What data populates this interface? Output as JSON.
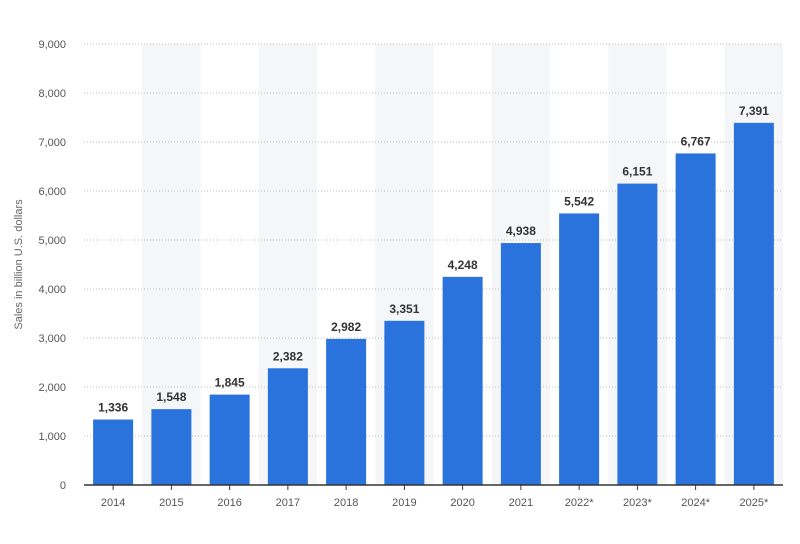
{
  "chart_data": {
    "type": "bar",
    "title": "",
    "xlabel": "",
    "ylabel": "Sales in billion U.S. dollars",
    "categories": [
      "2014",
      "2015",
      "2016",
      "2017",
      "2018",
      "2019",
      "2020",
      "2021",
      "2022*",
      "2023*",
      "2024*",
      "2025*"
    ],
    "values": [
      1336,
      1548,
      1845,
      2382,
      2982,
      3351,
      4248,
      4938,
      5542,
      6151,
      6767,
      7391
    ],
    "value_labels": [
      "1,336",
      "1,548",
      "1,845",
      "2,382",
      "2,982",
      "3,351",
      "4,248",
      "4,938",
      "5,542",
      "6,151",
      "6,767",
      "7,391"
    ],
    "ylim": [
      0,
      9000
    ],
    "yticks": [
      0,
      1000,
      2000,
      3000,
      4000,
      5000,
      6000,
      7000,
      8000,
      9000
    ],
    "ytick_labels": [
      "0",
      "1,000",
      "2,000",
      "3,000",
      "4,000",
      "5,000",
      "6,000",
      "7,000",
      "8,000",
      "9,000"
    ],
    "grid": true,
    "alternating_column_bands": true,
    "colors": {
      "bar": "#2a73dd",
      "band": "#f5f6f8",
      "grid": "#bcbcbc",
      "axis": "#333333"
    }
  }
}
